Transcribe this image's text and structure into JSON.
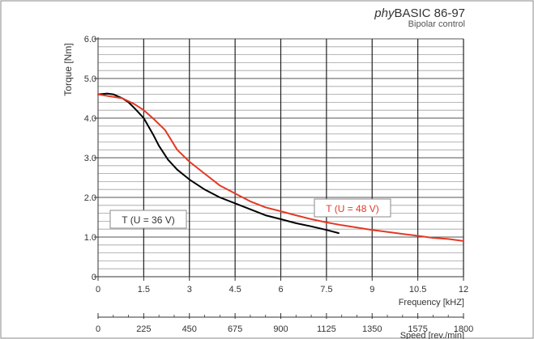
{
  "title": {
    "prefix": "phy",
    "main": "BASIC 86-97",
    "subtitle": "Bipolar control"
  },
  "chart_data": {
    "type": "line",
    "ylabel": "Torque [Nm]",
    "xlabel": "Frequency [kHZ]",
    "x2label": "Speed [rev./min]",
    "xlim": [
      0,
      12
    ],
    "ylim": [
      0,
      6
    ],
    "x_ticks": [
      "0",
      "1.5",
      "3",
      "4.5",
      "6",
      "7.5",
      "9",
      "10.5",
      "12"
    ],
    "y_ticks": [
      "0",
      "1.0",
      "2.0",
      "3.0",
      "4.0",
      "5.0",
      "6.0"
    ],
    "x2_ticks": [
      "0",
      "225",
      "450",
      "675",
      "900",
      "1125",
      "1350",
      "1575",
      "1800"
    ],
    "grid": true,
    "series": [
      {
        "name": "T (U = 36 V)",
        "color": "#000000",
        "x": [
          0,
          0.3,
          0.5,
          0.8,
          1.0,
          1.2,
          1.5,
          1.8,
          2.0,
          2.3,
          2.6,
          3.0,
          3.5,
          4.0,
          4.5,
          5.0,
          5.5,
          6.0,
          6.5,
          7.0,
          7.5,
          7.9
        ],
        "y": [
          4.6,
          4.62,
          4.6,
          4.5,
          4.4,
          4.25,
          4.0,
          3.6,
          3.3,
          2.95,
          2.7,
          2.45,
          2.2,
          2.0,
          1.85,
          1.7,
          1.55,
          1.45,
          1.35,
          1.27,
          1.18,
          1.1
        ]
      },
      {
        "name": "T (U = 48 V)",
        "color": "#e23a24",
        "x": [
          0,
          0.4,
          0.8,
          1.2,
          1.5,
          1.8,
          2.2,
          2.6,
          3.0,
          3.5,
          4.0,
          4.5,
          5.0,
          5.5,
          6.0,
          6.5,
          7.0,
          7.5,
          8.0,
          8.5,
          9.0,
          9.5,
          10.0,
          10.5,
          11.0,
          11.5,
          12.0
        ],
        "y": [
          4.6,
          4.55,
          4.5,
          4.35,
          4.2,
          4.0,
          3.7,
          3.2,
          2.9,
          2.6,
          2.3,
          2.1,
          1.9,
          1.75,
          1.65,
          1.55,
          1.45,
          1.37,
          1.3,
          1.24,
          1.18,
          1.13,
          1.08,
          1.03,
          0.98,
          0.95,
          0.9
        ]
      }
    ]
  }
}
